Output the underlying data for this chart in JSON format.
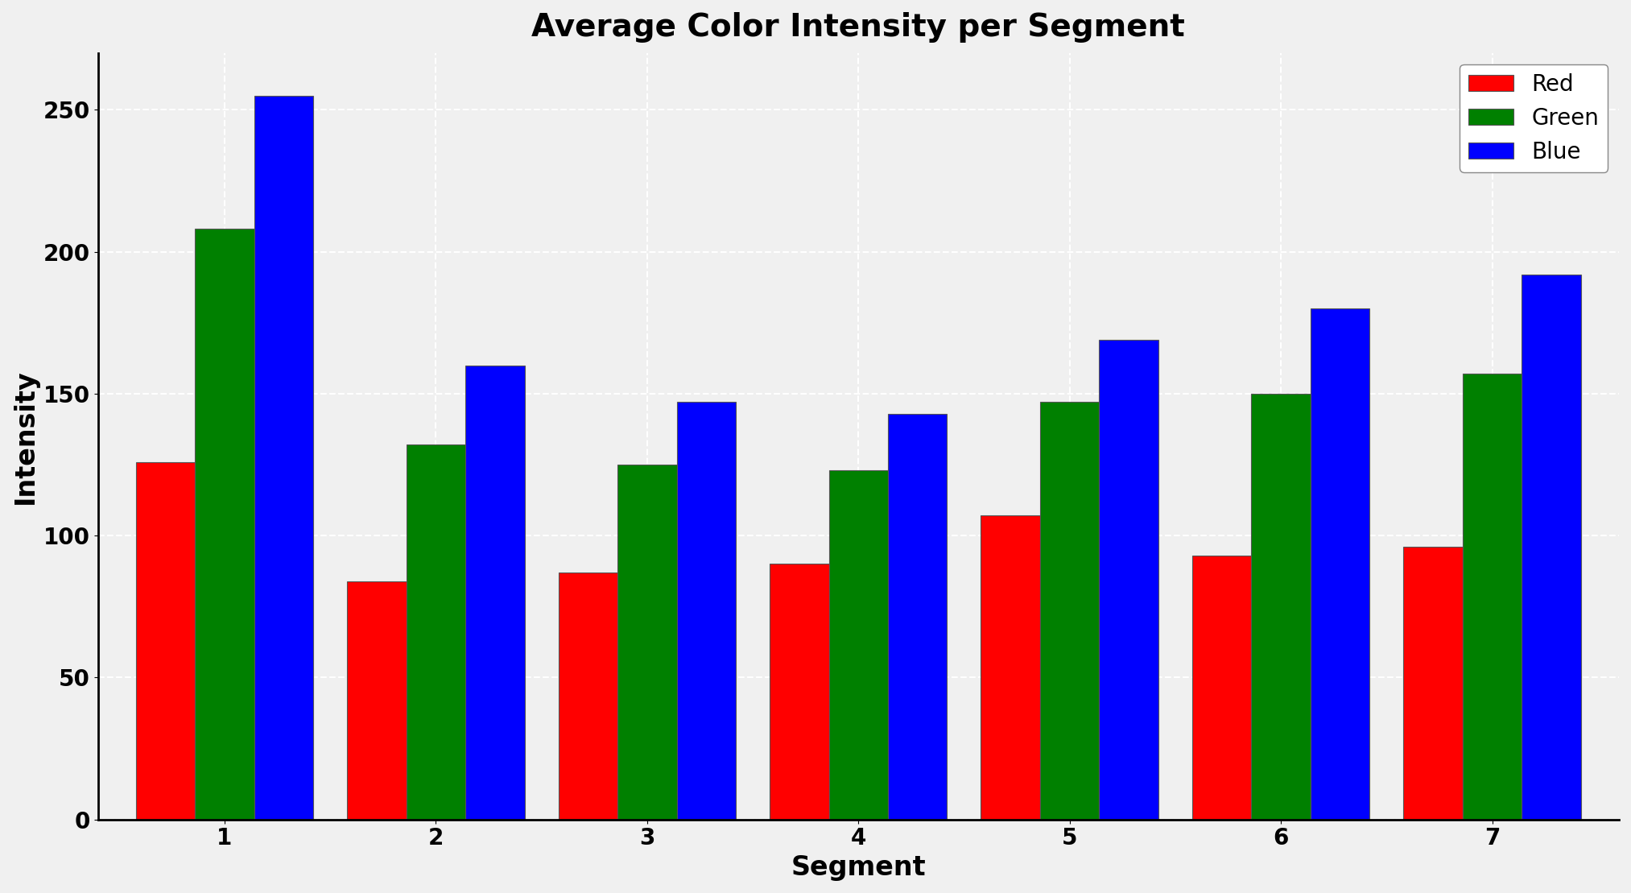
{
  "title": "Average Color Intensity per Segment",
  "xlabel": "Segment",
  "ylabel": "Intensity",
  "segments": [
    1,
    2,
    3,
    4,
    5,
    6,
    7
  ],
  "red_values": [
    126,
    84,
    87,
    90,
    107,
    93,
    96
  ],
  "green_values": [
    208,
    132,
    125,
    123,
    147,
    150,
    157
  ],
  "blue_values": [
    255,
    160,
    147,
    143,
    169,
    180,
    192
  ],
  "bar_colors": [
    "#ff0000",
    "#008000",
    "#0000ff"
  ],
  "legend_labels": [
    "Red",
    "Green",
    "Blue"
  ],
  "ylim": [
    0,
    270
  ],
  "background_color": "#f0f0f0",
  "grid_color": "#ffffff",
  "title_fontsize": 28,
  "axis_label_fontsize": 24,
  "tick_fontsize": 20,
  "legend_fontsize": 20,
  "bar_width": 0.28,
  "edge_color": "#555555"
}
